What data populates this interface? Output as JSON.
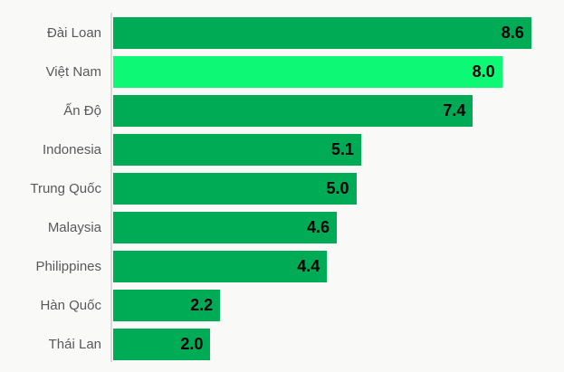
{
  "chart_data": {
    "type": "bar",
    "orientation": "horizontal",
    "title": "",
    "xlabel": "",
    "ylabel": "",
    "categories": [
      "Đài Loan",
      "Việt Nam",
      "Ấn Độ",
      "Indonesia",
      "Trung Quốc",
      "Malaysia",
      "Philippines",
      "Hàn Quốc",
      "Thái Lan"
    ],
    "values": [
      8.6,
      8.0,
      7.4,
      5.1,
      5.0,
      4.6,
      4.4,
      2.2,
      2.0
    ],
    "value_labels": [
      "8.6",
      "8.0",
      "7.4",
      "5.1",
      "5.0",
      "4.6",
      "4.4",
      "2.2",
      "2.0"
    ],
    "highlighted_category": "Việt Nam",
    "xlim": [
      0,
      8.6
    ],
    "grid": false,
    "legend": "none",
    "colors": {
      "bar": "#00ab55",
      "bar_highlight": "#0df975",
      "category_label_text": "#58595b",
      "value_label_text": "#000000",
      "axis_line": "#dbdbdb",
      "background": "#f9f9f8"
    }
  }
}
